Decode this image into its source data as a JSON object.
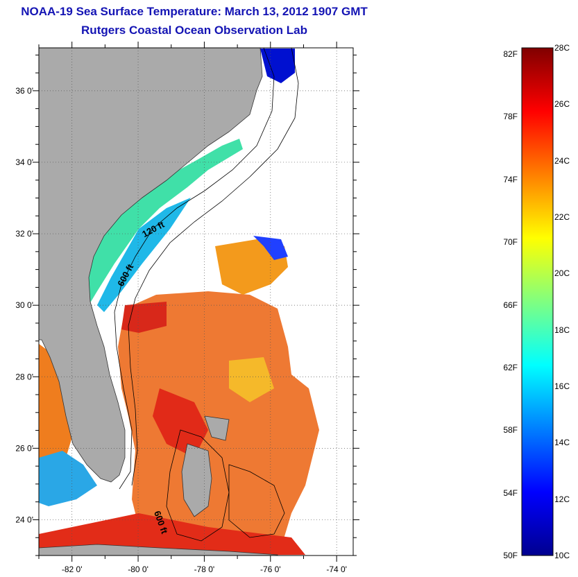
{
  "title": {
    "line1": "NOAA-19 Sea Surface Temperature:  March 13, 2012 1907 GMT",
    "line2": "Rutgers Coastal Ocean Observation Lab"
  },
  "map": {
    "lon_range": [
      -83.0,
      -73.5
    ],
    "lat_range": [
      23.0,
      37.2
    ],
    "lon_ticks": [
      {
        "value": -82,
        "label": "-82 0'"
      },
      {
        "value": -80,
        "label": "-80 0'"
      },
      {
        "value": -78,
        "label": "-78 0'"
      },
      {
        "value": -76,
        "label": "-76 0'"
      },
      {
        "value": -74,
        "label": "-74 0'"
      }
    ],
    "lat_ticks": [
      {
        "value": 36,
        "label": "36 0'"
      },
      {
        "value": 34,
        "label": "34 0'"
      },
      {
        "value": 32,
        "label": "32 0'"
      },
      {
        "value": 30,
        "label": "30 0'"
      },
      {
        "value": 28,
        "label": "28 0'"
      },
      {
        "value": 26,
        "label": "26 0'"
      },
      {
        "value": 24,
        "label": "24 0'"
      }
    ],
    "contour_labels": [
      {
        "text": "120 ft",
        "lon": -79.5,
        "lat": 32.05,
        "rotate": -28
      },
      {
        "text": "600 ft",
        "lon": -80.3,
        "lat": 30.8,
        "rotate": -62
      },
      {
        "text": "600 ft",
        "lon": -79.4,
        "lat": 23.9,
        "rotate": 70
      }
    ],
    "colors": {
      "land": "#aaaaaa",
      "grid": "#555555"
    }
  },
  "colorbar": {
    "fahrenheit": [
      "82F",
      "78F",
      "74F",
      "70F",
      "66F",
      "62F",
      "58F",
      "54F",
      "50F"
    ],
    "celsius": [
      "28C",
      "26C",
      "24C",
      "22C",
      "20C",
      "18C",
      "16C",
      "14C",
      "12C",
      "10C"
    ],
    "range_celsius": [
      10,
      28
    ],
    "colormap": "jet"
  }
}
